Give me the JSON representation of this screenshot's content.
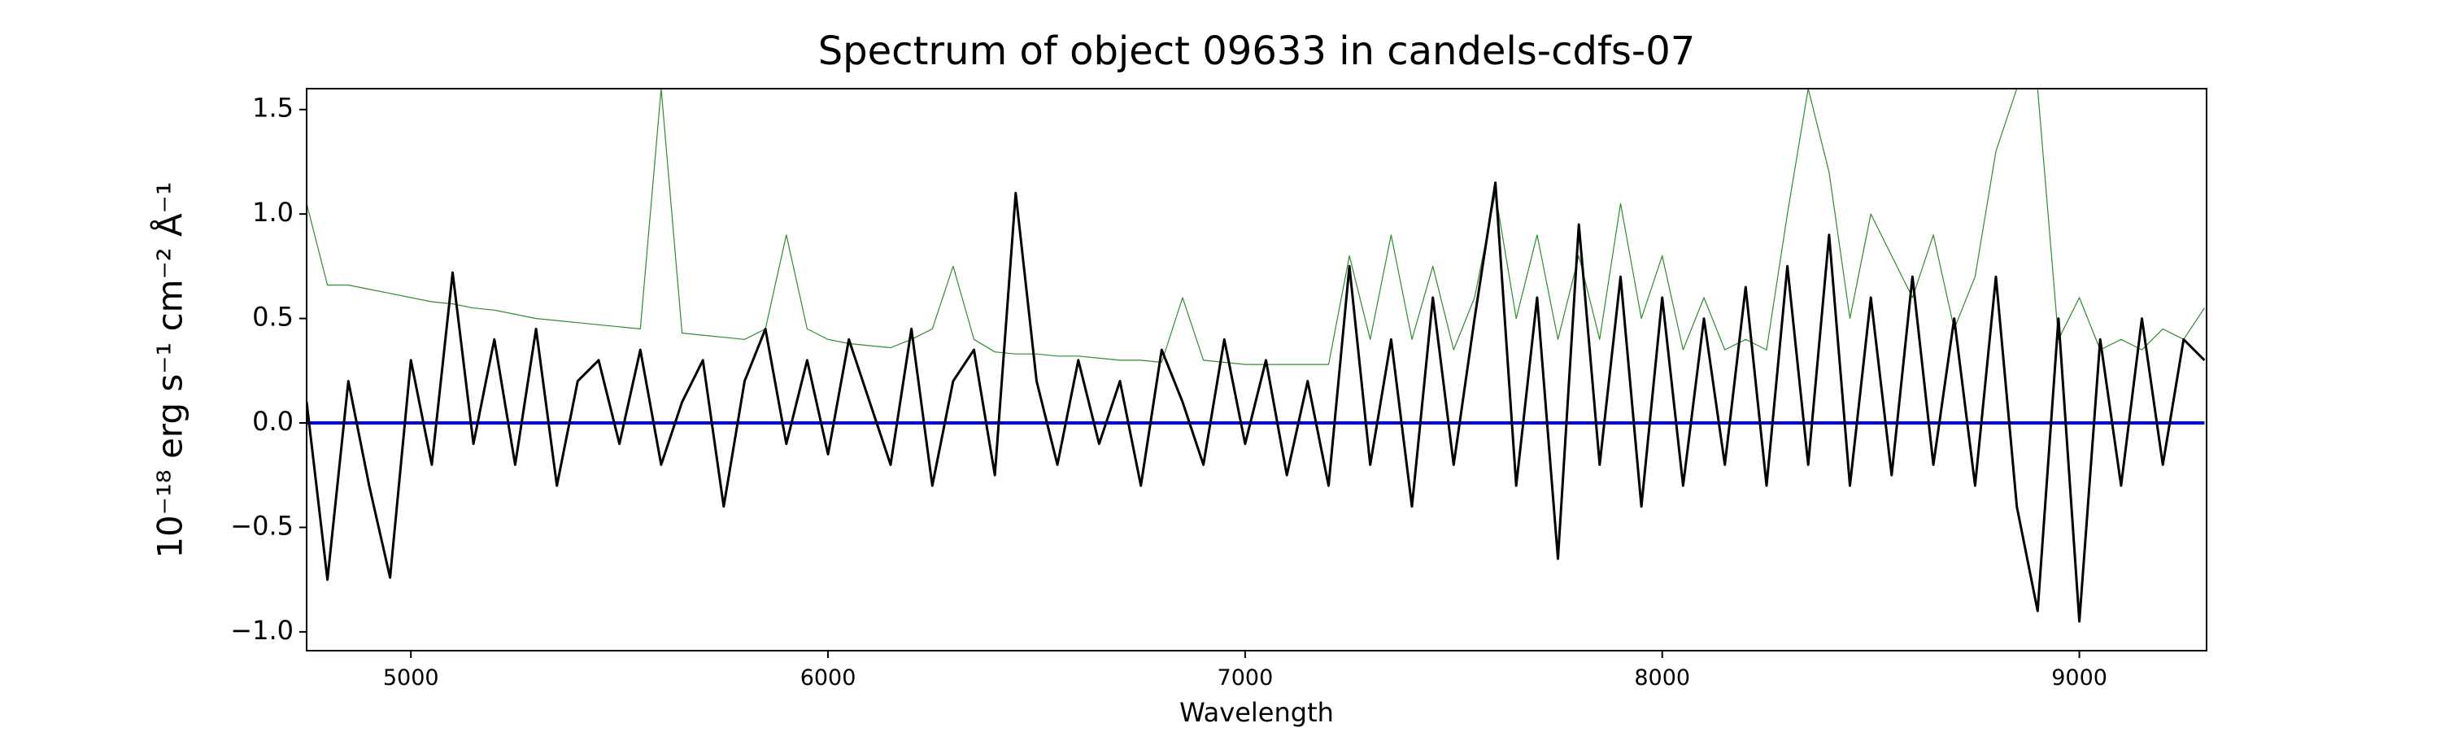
{
  "chart_data": {
    "type": "line",
    "title": "Spectrum of object 09633 in candels-cdfs-07",
    "x_label": "Wavelength",
    "y_label": "10⁻¹⁸ erg s⁻¹ cm⁻² Å⁻¹",
    "xlim": [
      4750,
      9305
    ],
    "ylim": [
      -1.09,
      1.6
    ],
    "xticks": [
      5000,
      6000,
      7000,
      8000,
      9000
    ],
    "yticks": [
      {
        "value": -1,
        "label": "−1.0"
      },
      {
        "value": -0.5,
        "label": "−0.5"
      },
      {
        "value": 0,
        "label": "0.0"
      },
      {
        "value": 0.5,
        "label": "0.5"
      },
      {
        "value": 1,
        "label": "1.0"
      },
      {
        "value": 1.5,
        "label": "1.5"
      }
    ],
    "grid": false,
    "x": [
      4750,
      4800,
      4850,
      4900,
      4950,
      5000,
      5050,
      5100,
      5150,
      5200,
      5250,
      5300,
      5350,
      5400,
      5450,
      5500,
      5550,
      5600,
      5650,
      5700,
      5750,
      5800,
      5850,
      5900,
      5950,
      6000,
      6050,
      6100,
      6150,
      6200,
      6250,
      6300,
      6350,
      6400,
      6450,
      6500,
      6550,
      6600,
      6650,
      6700,
      6750,
      6800,
      6850,
      6900,
      6950,
      7000,
      7050,
      7100,
      7150,
      7200,
      7250,
      7300,
      7350,
      7400,
      7450,
      7500,
      7550,
      7600,
      7650,
      7700,
      7750,
      7800,
      7850,
      7900,
      7950,
      8000,
      8050,
      8100,
      8150,
      8200,
      8250,
      8300,
      8350,
      8400,
      8450,
      8500,
      8550,
      8600,
      8650,
      8700,
      8750,
      8800,
      8850,
      8900,
      8950,
      9000,
      9050,
      9100,
      9150,
      9200,
      9250,
      9300
    ],
    "series": [
      {
        "color": "#2e8b2e",
        "width": 1.2,
        "values": [
          1.05,
          0.66,
          0.66,
          0.64,
          0.62,
          0.6,
          0.58,
          0.57,
          0.55,
          0.54,
          0.52,
          0.5,
          0.49,
          0.48,
          0.47,
          0.46,
          0.45,
          1.6,
          0.43,
          0.42,
          0.41,
          0.4,
          0.45,
          0.9,
          0.45,
          0.4,
          0.38,
          0.37,
          0.36,
          0.4,
          0.45,
          0.75,
          0.4,
          0.34,
          0.33,
          0.33,
          0.32,
          0.32,
          0.31,
          0.3,
          0.3,
          0.29,
          0.6,
          0.3,
          0.29,
          0.28,
          0.28,
          0.28,
          0.28,
          0.28,
          0.8,
          0.4,
          0.9,
          0.4,
          0.75,
          0.35,
          0.6,
          1.1,
          0.5,
          0.9,
          0.4,
          0.8,
          0.4,
          1.05,
          0.5,
          0.8,
          0.35,
          0.6,
          0.35,
          0.4,
          0.35,
          1.0,
          1.6,
          1.2,
          0.5,
          1.0,
          0.8,
          0.6,
          0.9,
          0.45,
          0.7,
          1.3,
          1.6,
          1.6,
          0.4,
          0.6,
          0.35,
          0.4,
          0.35,
          0.45,
          0.4,
          0.55
        ]
      },
      {
        "color": "#0000cc",
        "width": 4,
        "values": [
          0,
          0,
          0,
          0,
          0,
          0,
          0,
          0,
          0,
          0,
          0,
          0,
          0,
          0,
          0,
          0,
          0,
          0,
          0,
          0,
          0,
          0,
          0,
          0,
          0,
          0,
          0,
          0,
          0,
          0,
          0,
          0,
          0,
          0,
          0,
          0,
          0,
          0,
          0,
          0,
          0,
          0,
          0,
          0,
          0,
          0,
          0,
          0,
          0,
          0,
          0,
          0,
          0,
          0,
          0,
          0,
          0,
          0,
          0,
          0,
          0,
          0,
          0,
          0,
          0,
          0,
          0,
          0,
          0,
          0,
          0,
          0,
          0,
          0,
          0,
          0,
          0,
          0,
          0,
          0,
          0,
          0,
          0,
          0,
          0,
          0,
          0,
          0,
          0,
          0,
          0,
          0
        ]
      },
      {
        "color": "#000000",
        "width": 3,
        "values": [
          0.1,
          -0.75,
          0.2,
          -0.3,
          -0.74,
          0.3,
          -0.2,
          0.72,
          -0.1,
          0.4,
          -0.2,
          0.45,
          -0.3,
          0.2,
          0.3,
          -0.1,
          0.35,
          -0.2,
          0.1,
          0.3,
          -0.4,
          0.2,
          0.45,
          -0.1,
          0.3,
          -0.15,
          0.4,
          0.1,
          -0.2,
          0.45,
          -0.3,
          0.2,
          0.35,
          -0.25,
          1.1,
          0.2,
          -0.2,
          0.3,
          -0.1,
          0.2,
          -0.3,
          0.35,
          0.1,
          -0.2,
          0.4,
          -0.1,
          0.3,
          -0.25,
          0.2,
          -0.3,
          0.75,
          -0.2,
          0.4,
          -0.4,
          0.6,
          -0.2,
          0.5,
          1.15,
          -0.3,
          0.6,
          -0.65,
          0.95,
          -0.2,
          0.7,
          -0.4,
          0.6,
          -0.3,
          0.5,
          -0.2,
          0.65,
          -0.3,
          0.75,
          -0.2,
          0.9,
          -0.3,
          0.6,
          -0.25,
          0.7,
          -0.2,
          0.5,
          -0.3,
          0.7,
          -0.4,
          -0.9,
          0.5,
          -0.95,
          0.4,
          -0.3,
          0.5,
          -0.2,
          0.4,
          0.3
        ]
      }
    ]
  }
}
